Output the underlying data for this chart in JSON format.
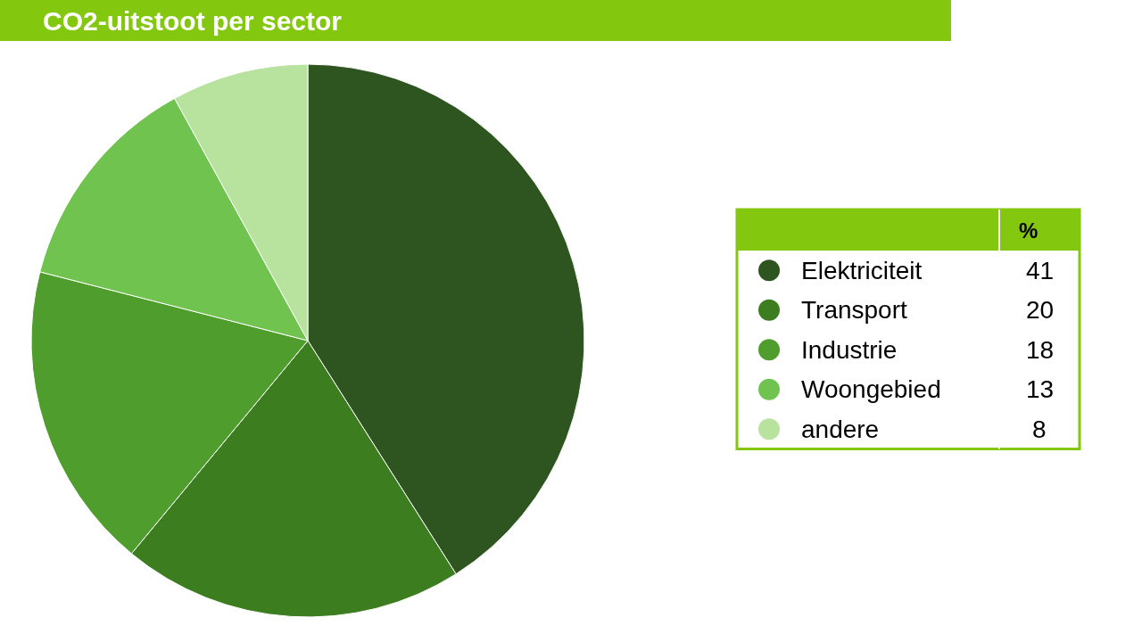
{
  "chart_data": {
    "type": "pie",
    "title": "CO2-uitstoot per sector",
    "legend_title": "%",
    "legend": "right",
    "data_labels": true,
    "categories": [
      "Elektriciteit",
      "Transport",
      "Industrie",
      "Woongebied",
      "andere"
    ],
    "values": [
      41,
      20,
      18,
      13,
      8
    ],
    "colors": [
      "#2e5420",
      "#3b7d1f",
      "#4f9d2d",
      "#70c34f",
      "#b8e39e"
    ]
  }
}
